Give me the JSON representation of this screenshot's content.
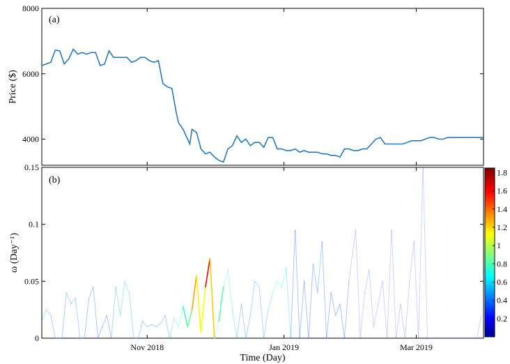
{
  "chart_data": [
    {
      "panel_label": "(a)",
      "type": "line",
      "ylabel": "Price ($)",
      "ylim": [
        3200,
        8000
      ],
      "yticks": [
        4000,
        6000,
        8000
      ],
      "ytick_labels": [
        "4000",
        "6000",
        "8000"
      ],
      "x_start": "2018-09-15",
      "x_end": "2019-03-31",
      "line_color": "#2878b5",
      "series": [
        {
          "x": [
            "2018-09-15",
            "2018-09-17",
            "2018-09-19",
            "2018-09-21",
            "2018-09-23",
            "2018-09-25",
            "2018-09-27",
            "2018-09-29",
            "2018-10-01",
            "2018-10-03",
            "2018-10-05",
            "2018-10-07",
            "2018-10-09",
            "2018-10-11",
            "2018-10-13",
            "2018-10-15",
            "2018-10-17",
            "2018-10-19",
            "2018-10-21",
            "2018-10-23",
            "2018-10-25",
            "2018-10-27",
            "2018-10-29",
            "2018-10-31",
            "2018-11-02",
            "2018-11-04",
            "2018-11-06",
            "2018-11-08",
            "2018-11-10",
            "2018-11-12",
            "2018-11-14",
            "2018-11-15",
            "2018-11-17",
            "2018-11-19",
            "2018-11-20",
            "2018-11-21",
            "2018-11-23",
            "2018-11-25",
            "2018-11-27",
            "2018-11-29",
            "2018-12-01",
            "2018-12-03",
            "2018-12-05",
            "2018-12-07",
            "2018-12-09",
            "2018-12-11",
            "2018-12-13",
            "2018-12-15",
            "2018-12-17",
            "2018-12-19",
            "2018-12-21",
            "2018-12-23",
            "2018-12-25",
            "2018-12-27",
            "2018-12-29",
            "2018-12-31",
            "2019-01-02",
            "2019-01-04",
            "2019-01-06",
            "2019-01-08",
            "2019-01-10",
            "2019-01-12",
            "2019-01-14",
            "2019-01-16",
            "2019-01-18",
            "2019-01-20",
            "2019-01-22",
            "2019-01-24",
            "2019-01-26",
            "2019-01-28",
            "2019-01-30",
            "2019-02-01",
            "2019-02-03",
            "2019-02-05",
            "2019-02-07",
            "2019-02-09",
            "2019-02-11",
            "2019-02-13",
            "2019-02-15",
            "2019-02-17",
            "2019-02-19",
            "2019-02-21",
            "2019-02-23",
            "2019-02-25",
            "2019-02-27",
            "2019-03-01",
            "2019-03-03",
            "2019-03-05",
            "2019-03-07",
            "2019-03-09",
            "2019-03-11",
            "2019-03-13",
            "2019-03-15",
            "2019-03-17",
            "2019-03-19",
            "2019-03-21",
            "2019-03-23",
            "2019-03-25",
            "2019-03-27",
            "2019-03-29",
            "2019-03-31"
          ],
          "y": [
            6250,
            6300,
            6350,
            6720,
            6700,
            6300,
            6450,
            6750,
            6600,
            6650,
            6600,
            6650,
            6650,
            6250,
            6300,
            6700,
            6500,
            6500,
            6500,
            6500,
            6350,
            6400,
            6500,
            6500,
            6400,
            6350,
            6400,
            5700,
            5600,
            5550,
            4800,
            4500,
            4300,
            4000,
            3850,
            4300,
            4200,
            3700,
            3550,
            3600,
            3450,
            3350,
            3300,
            3700,
            3800,
            4100,
            3900,
            4000,
            3800,
            3900,
            3900,
            3750,
            4050,
            4050,
            3700,
            3700,
            3650,
            3650,
            3700,
            3600,
            3650,
            3600,
            3600,
            3600,
            3550,
            3550,
            3500,
            3500,
            3450,
            3700,
            3700,
            3650,
            3650,
            3700,
            3700,
            3850,
            4000,
            4050,
            3850,
            3850,
            3850,
            3850,
            3850,
            3900,
            3950,
            3950,
            3950,
            4000,
            4050,
            4050,
            4000,
            4000,
            4050,
            4050,
            4050,
            4050,
            4050,
            4050,
            4050,
            4050,
            4050
          ]
        }
      ]
    },
    {
      "panel_label": "(b)",
      "type": "line",
      "xlabel": "Time (Day)",
      "ylabel": "ω (Day⁻¹)",
      "ylim": [
        0,
        0.15
      ],
      "yticks": [
        0,
        0.05,
        0.1,
        0.15
      ],
      "ytick_labels": [
        "0",
        "0.05",
        "0.1",
        "0.15"
      ],
      "xticks": [
        "2018-11-01",
        "2019-01-01",
        "2019-03-01"
      ],
      "xtick_labels": [
        "Nov 2018",
        "Jan 2019",
        "Mar 2019"
      ],
      "colorbar": {
        "range": [
          0,
          1.85
        ],
        "ticks": [
          0.2,
          0.4,
          0.6,
          0.8,
          1,
          1.2,
          1.4,
          1.6,
          1.8
        ],
        "tick_labels": [
          "0.2",
          "0.4",
          "0.6",
          "0.8",
          "1",
          "1.2",
          "1.4",
          "1.6",
          "1.8"
        ],
        "colormap": "jet"
      },
      "segments": [
        {
          "x": [
            "2018-09-15",
            "2018-09-17",
            "2018-09-19",
            "2018-09-21",
            "2018-09-24",
            "2018-09-26",
            "2018-09-28",
            "2018-09-30",
            "2018-10-02",
            "2018-10-04",
            "2018-10-06",
            "2018-10-08",
            "2018-10-10",
            "2018-10-12",
            "2018-10-14",
            "2018-10-16"
          ],
          "y": [
            0.015,
            0.025,
            0.02,
            0.0,
            0.0,
            0.04,
            0.03,
            0.035,
            0.0,
            0.0,
            0.035,
            0.045,
            0.0,
            0.01,
            0.02,
            0.0
          ],
          "c": [
            0.5,
            0.55,
            0.45,
            0.4,
            0.35,
            0.5,
            0.45,
            0.5,
            0.4,
            0.35,
            0.45,
            0.45,
            0.35,
            0.35,
            0.4,
            0.35
          ]
        },
        {
          "x": [
            "2018-10-16",
            "2018-10-18",
            "2018-10-20",
            "2018-10-22",
            "2018-10-24",
            "2018-10-26",
            "2018-10-28",
            "2018-10-30",
            "2018-11-01",
            "2018-11-03",
            "2018-11-05",
            "2018-11-07",
            "2018-11-09",
            "2018-11-11"
          ],
          "y": [
            0.0,
            0.045,
            0.02,
            0.05,
            0.04,
            0.0,
            0.0,
            0.015,
            0.01,
            0.012,
            0.01,
            0.013,
            0.02,
            0.0
          ],
          "c": [
            0.4,
            0.6,
            0.5,
            0.65,
            0.6,
            0.4,
            0.4,
            0.45,
            0.45,
            0.45,
            0.45,
            0.45,
            0.5,
            0.45
          ]
        },
        {
          "x": [
            "2018-11-11",
            "2018-11-13",
            "2018-11-15",
            "2018-11-17",
            "2018-11-19",
            "2018-11-21",
            "2018-11-23",
            "2018-11-25",
            "2018-11-27",
            "2018-11-29",
            "2018-12-01",
            "2018-12-03",
            "2018-12-05"
          ],
          "y": [
            0.0,
            0.018,
            0.01,
            0.028,
            0.01,
            0.025,
            0.055,
            0.005,
            0.045,
            0.07,
            0.0,
            0.015,
            0.045
          ],
          "c": [
            0.5,
            0.7,
            0.6,
            0.9,
            0.7,
            1.1,
            1.55,
            0.8,
            1.5,
            1.8,
            0.7,
            0.8,
            0.9
          ]
        },
        {
          "x": [
            "2018-12-05",
            "2018-12-07",
            "2018-12-09",
            "2018-12-11",
            "2018-12-13",
            "2018-12-15",
            "2018-12-17",
            "2018-12-19",
            "2018-12-21",
            "2018-12-23",
            "2018-12-25",
            "2018-12-27",
            "2018-12-29",
            "2018-12-31",
            "2019-01-02",
            "2019-01-04"
          ],
          "y": [
            0.045,
            0.06,
            0.025,
            0.0,
            0.03,
            0.0,
            0.02,
            0.05,
            0.045,
            0.0,
            0.025,
            0.04,
            0.05,
            0.045,
            0.062,
            0.0
          ],
          "c": [
            0.8,
            0.75,
            0.6,
            0.5,
            0.5,
            0.45,
            0.45,
            0.55,
            0.5,
            0.45,
            0.55,
            0.65,
            0.7,
            0.65,
            0.7,
            0.5
          ]
        },
        {
          "x": [
            "2019-01-04",
            "2019-01-06",
            "2019-01-08",
            "2019-01-10",
            "2019-01-12",
            "2019-01-14",
            "2019-01-16",
            "2019-01-18",
            "2019-01-20",
            "2019-01-22",
            "2019-01-24",
            "2019-01-26",
            "2019-01-28",
            "2019-01-30"
          ],
          "y": [
            0.0,
            0.095,
            0.0,
            0.05,
            0.0,
            0.065,
            0.04,
            0.085,
            0.0,
            0.04,
            0.02,
            0.03,
            0.0,
            0.05
          ],
          "c": [
            0.35,
            0.4,
            0.35,
            0.4,
            0.35,
            0.4,
            0.45,
            0.45,
            0.35,
            0.4,
            0.35,
            0.35,
            0.35,
            0.4
          ]
        },
        {
          "x": [
            "2019-01-30",
            "2019-02-02",
            "2019-02-04",
            "2019-02-06",
            "2019-02-08",
            "2019-02-10",
            "2019-02-12",
            "2019-02-14",
            "2019-02-16",
            "2019-02-18",
            "2019-02-20",
            "2019-02-22",
            "2019-02-24",
            "2019-02-26",
            "2019-02-28",
            "2019-03-02",
            "2019-03-04",
            "2019-03-06",
            "2019-03-08",
            "2019-03-10",
            "2019-03-12",
            "2019-03-14",
            "2019-03-16",
            "2019-03-18",
            "2019-03-20",
            "2019-03-22",
            "2019-03-24",
            "2019-03-26",
            "2019-03-28",
            "2019-03-30"
          ],
          "y": [
            0.05,
            0.095,
            0.0,
            0.04,
            0.06,
            0.01,
            0.03,
            0.05,
            0.0,
            0.095,
            0.0,
            0.03,
            0.0,
            0.05,
            0.085,
            0.0,
            0.15,
            0.0,
            0.0,
            0.0,
            0.0,
            0.0,
            0.0,
            0.0,
            0.0,
            0.0,
            0.0,
            0.0,
            0.0,
            0.02
          ],
          "c": [
            0.3,
            0.3,
            0.3,
            0.3,
            0.3,
            0.3,
            0.3,
            0.3,
            0.3,
            0.3,
            0.3,
            0.3,
            0.3,
            0.3,
            0.3,
            0.3,
            0.3,
            0.3,
            0.3,
            0.3,
            0.3,
            0.3,
            0.3,
            0.3,
            0.3,
            0.3,
            0.3,
            0.3,
            0.3,
            0.3
          ],
          "faint": true
        }
      ]
    }
  ]
}
